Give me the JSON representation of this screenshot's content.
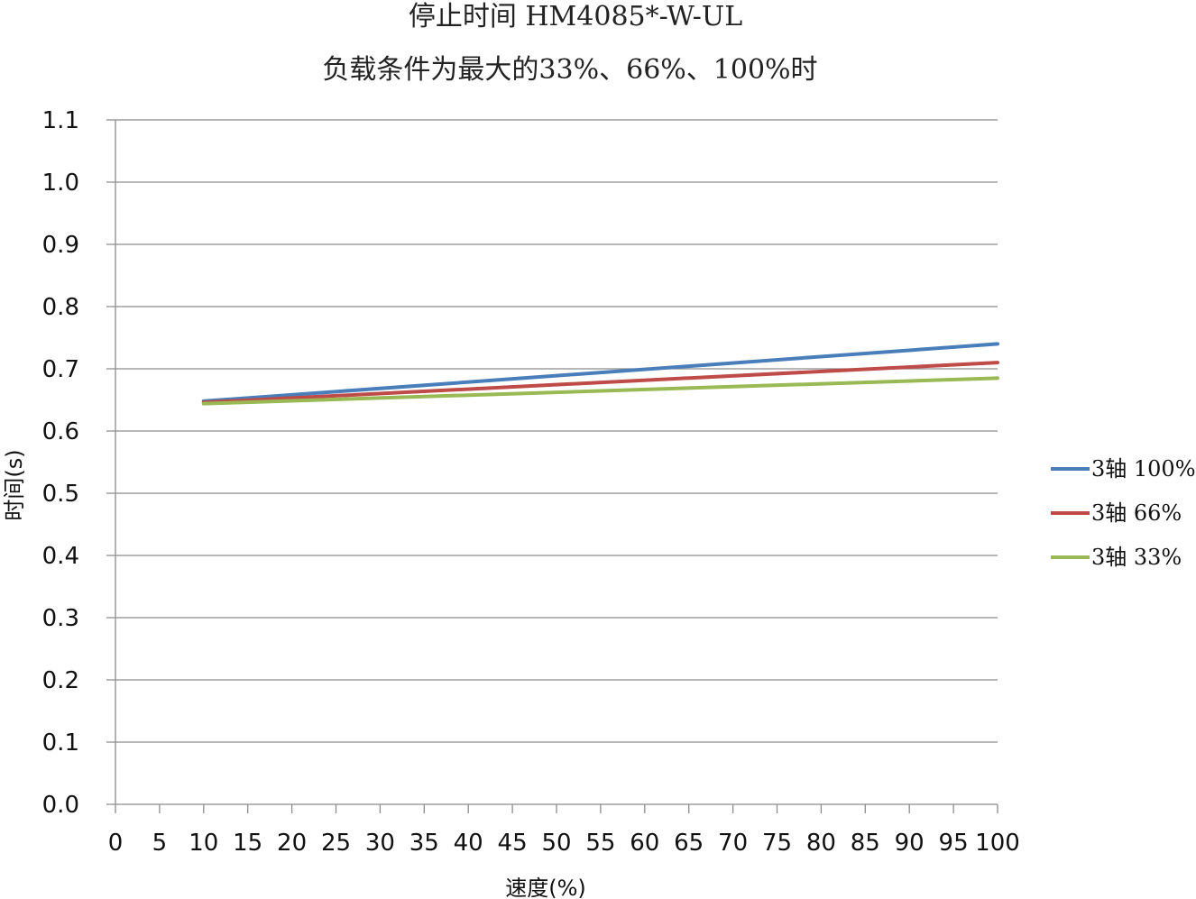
{
  "chart_data": {
    "type": "line",
    "title": "停止时间 HM4085*-W-UL",
    "subtitle": "负载条件为最大的33%、66%、100%时",
    "xlabel": "速度(%)",
    "ylabel": "时间(s)",
    "xlim": [
      0,
      100
    ],
    "ylim": [
      0.0,
      1.1
    ],
    "x_ticks": [
      "0",
      "5",
      "10",
      "15",
      "20",
      "25",
      "30",
      "35",
      "40",
      "45",
      "50",
      "55",
      "60",
      "65",
      "70",
      "75",
      "80",
      "85",
      "90",
      "95",
      "100"
    ],
    "y_ticks": [
      "0.0",
      "0.1",
      "0.2",
      "0.3",
      "0.4",
      "0.5",
      "0.6",
      "0.7",
      "0.8",
      "0.9",
      "1.0",
      "1.1"
    ],
    "grid": true,
    "legend_position": "right",
    "series": [
      {
        "name": "3轴 100%",
        "color": "#4a7ebb",
        "x": [
          10,
          100
        ],
        "y": [
          0.648,
          0.74
        ]
      },
      {
        "name": "3轴 66%",
        "color": "#be4b48",
        "x": [
          10,
          100
        ],
        "y": [
          0.646,
          0.71
        ]
      },
      {
        "name": "3轴 33%",
        "color": "#98b954",
        "x": [
          10,
          100
        ],
        "y": [
          0.644,
          0.685
        ]
      }
    ]
  }
}
